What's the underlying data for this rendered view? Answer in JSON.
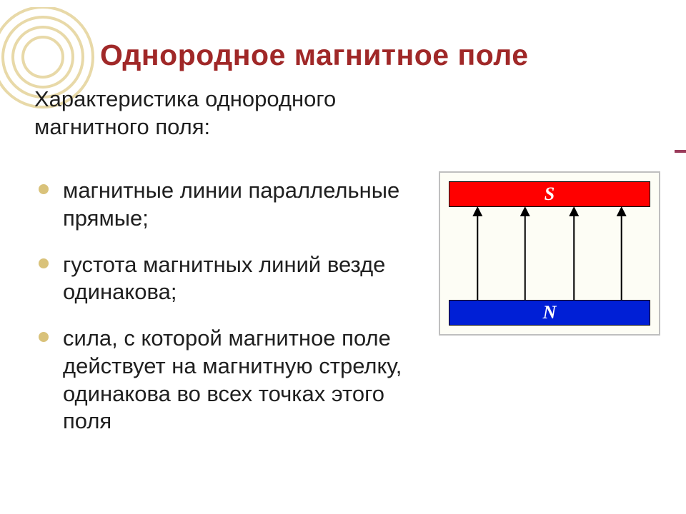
{
  "title": {
    "text": "Однородное магнитное поле",
    "color": "#a02828",
    "fontsize": 41
  },
  "subtitle": {
    "text": "Характеристика однородного магнитного поля:",
    "color": "#1f1f1f",
    "fontsize": 31
  },
  "bullets": {
    "items": [
      "магнитные линии параллельные прямые;",
      "густота магнитных линий везде одинакова;",
      "сила, с которой магнитное поле действует на магнитную стрелку, одинакова во всех точках этого поля"
    ],
    "text_color": "#1f1f1f",
    "fontsize": 31,
    "bullet_color": "#d9c27a"
  },
  "rings": {
    "stroke": "#e8d9a8",
    "count": 4
  },
  "dash_color": "#9a3a5a",
  "diagram": {
    "type": "infographic",
    "frame_border": "#bfbfbf",
    "frame_bg": "#fdfdf5",
    "top_bar": {
      "label": "S",
      "fill": "#ff0000",
      "text": "#ffffff",
      "border": "#000000",
      "label_fontsize": 26
    },
    "bottom_bar": {
      "label": "N",
      "fill": "#001fd6",
      "text": "#ffffff",
      "border": "#000000",
      "label_fontsize": 26
    },
    "arrows": {
      "count": 4,
      "color": "#000000",
      "stroke_width": 2,
      "direction": "up"
    }
  }
}
